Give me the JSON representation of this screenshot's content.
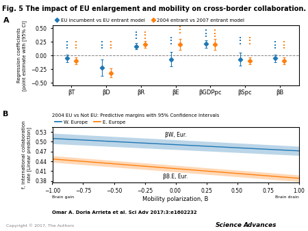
{
  "title": "Fig. 5 The impact of EU enlargement and mobility on cross-border collaboration.",
  "annotations": [
    "Omar A. Doria Arrieta et al. Sci Adv 2017;3:e1602232",
    "Copyright © 2017, The Authors",
    "Science",
    "Advances"
  ],
  "chart_data": [
    {
      "type": "scatter",
      "panel_label": "A",
      "categories": [
        "βT",
        "βD",
        "βR",
        "βE",
        "βGDPpc",
        "βSpc",
        "βB"
      ],
      "ylabel": "Regression coefficients\n[point estimate with [95% CI]",
      "ylim": [
        -0.55,
        0.55
      ],
      "yticks": [
        {
          "value": -0.5,
          "label": "−0.50"
        },
        {
          "value": -0.25,
          "label": "−0.25"
        },
        {
          "value": 0.0,
          "label": "0.00"
        },
        {
          "value": 0.25,
          "label": "0.25"
        },
        {
          "value": 0.5,
          "label": "0.50"
        }
      ],
      "hline": 0,
      "marker": "diamond",
      "series": [
        {
          "name": "EU incumbent vs EU entrant model",
          "values": [
            -0.05,
            -0.22,
            0.17,
            -0.07,
            0.21,
            -0.07,
            -0.05
          ],
          "error_low": [
            0.07,
            0.15,
            0.06,
            0.13,
            0.07,
            0.12,
            0.07
          ],
          "error_high": [
            0.07,
            0.15,
            0.06,
            0.13,
            0.07,
            0.12,
            0.07
          ],
          "marks_above": [
            [
              0.14,
              0.195,
              0.25
            ],
            [
              0.14,
              0.195,
              0.25
            ],
            [
              0.32,
              0.375,
              0.43
            ],
            [
              0.22,
              0.275,
              0.33
            ],
            [
              0.35,
              0.405,
              0.46
            ],
            [
              0.22,
              0.275,
              0.33
            ],
            [
              0.14,
              0.195,
              0.25
            ]
          ]
        },
        {
          "name": "2004 entrant vs 2007 entrant model",
          "values": [
            -0.1,
            -0.32,
            0.2,
            0.2,
            0.2,
            -0.1,
            -0.1
          ],
          "error_low": [
            0.06,
            0.08,
            0.06,
            0.1,
            0.1,
            0.06,
            0.06
          ],
          "error_high": [
            0.06,
            0.08,
            0.06,
            0.1,
            0.1,
            0.06,
            0.06
          ],
          "marks_above": [
            [
              0.14,
              0.195,
              0.25
            ],
            [
              0.14,
              0.195,
              0.25
            ],
            [
              0.32,
              0.375,
              0.43
            ],
            [
              0.42,
              0.475,
              0.53
            ],
            [
              0.35,
              0.405,
              0.46
            ],
            [
              0.22,
              0.275,
              0.33
            ],
            [
              0.14,
              0.195,
              0.25
            ]
          ]
        }
      ]
    },
    {
      "type": "line",
      "panel_label": "B",
      "subtitle": "2004 EU vs Not EU: Predictive margins with 95% Confidence Intervals",
      "xlabel": "Mobility polarization, B",
      "ylabel": "f, International collaboration\nrate [Linear prediction]",
      "x": [
        -1.0,
        1.0
      ],
      "xlim": [
        -1.0,
        1.0
      ],
      "xticks": [
        {
          "value": -1,
          "label": "−1.00"
        },
        {
          "value": -0.75,
          "label": "−0.75"
        },
        {
          "value": -0.5,
          "label": "−0.50"
        },
        {
          "value": -0.25,
          "label": "−0.25"
        },
        {
          "value": 0,
          "label": "0.00"
        },
        {
          "value": 0.25,
          "label": "0.25"
        },
        {
          "value": 0.5,
          "label": "0.50"
        },
        {
          "value": 0.75,
          "label": "0.75"
        },
        {
          "value": 1,
          "label": "1.00"
        }
      ],
      "ylim": [
        0.375,
        0.545
      ],
      "yticks": [
        0.38,
        0.41,
        0.44,
        0.47,
        {
          "value": 0.5,
          "label": "0.50"
        },
        0.53
      ],
      "x_end_labels": [
        "Brain gain",
        "Brain drain"
      ],
      "series": [
        {
          "name": "W. Europe",
          "values": [
            0.51,
            0.472
          ],
          "ci_low": [
            0.494,
            0.458
          ],
          "ci_high": [
            0.526,
            0.486
          ],
          "annotation": "βW, Eur."
        },
        {
          "name": "E. Europe",
          "values": [
            0.447,
            0.388
          ],
          "ci_low": [
            0.437,
            0.378
          ],
          "ci_high": [
            0.457,
            0.398
          ],
          "annotation": "βB.E, Eur."
        }
      ]
    }
  ]
}
